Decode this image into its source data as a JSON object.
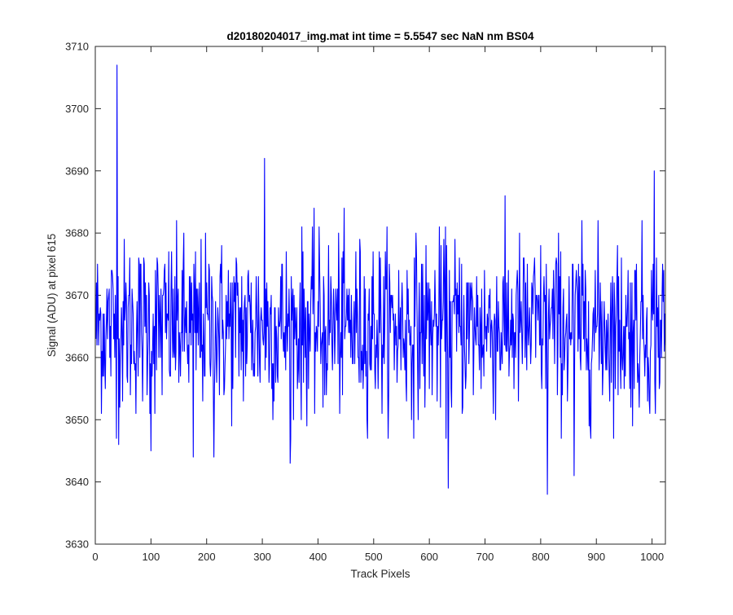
{
  "figure": {
    "background": "#ffffff",
    "axes_background": "#ffffff",
    "axis_color": "#262626",
    "line_color": "#0000ff"
  },
  "chart_data": {
    "type": "line",
    "title": "d20180204017_img.mat int time = 5.5547 sec  NaN nm BS04",
    "xlabel": "Track Pixels",
    "ylabel": "Signal (ADU) at pixel 615",
    "xlim": [
      0,
      1024
    ],
    "ylim": [
      3630,
      3710
    ],
    "xticks": [
      0,
      100,
      200,
      300,
      400,
      500,
      600,
      700,
      800,
      900,
      1000
    ],
    "yticks": [
      3630,
      3640,
      3650,
      3660,
      3670,
      3680,
      3690,
      3700,
      3710
    ],
    "grid": false,
    "legend": "none",
    "series": [
      {
        "color": "#0000ff",
        "x_start": 1,
        "x_step": 1,
        "n_points": 1024,
        "noise_mean": 3665,
        "noise_sd": 7,
        "values_note_omitted": true,
        "spikes": [
          {
            "x": 39,
            "y": 3707
          },
          {
            "x": 304,
            "y": 3692
          },
          {
            "x": 1004,
            "y": 3690
          },
          {
            "x": 634,
            "y": 3639
          },
          {
            "x": 812,
            "y": 3638
          },
          {
            "x": 350,
            "y": 3643
          },
          {
            "x": 176,
            "y": 3644
          },
          {
            "x": 213,
            "y": 3644
          },
          {
            "x": 860,
            "y": 3641
          },
          {
            "x": 42,
            "y": 3646
          },
          {
            "x": 100,
            "y": 3645
          }
        ]
      }
    ]
  }
}
